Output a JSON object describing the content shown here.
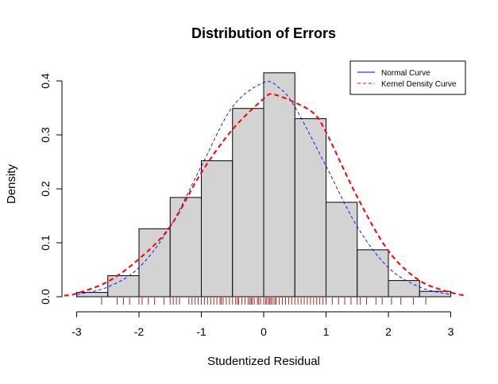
{
  "chart_data": {
    "type": "histogram",
    "title": "Distribution of Errors",
    "xlabel": "Studentized Residual",
    "ylabel": "Density",
    "xlim": [
      -3.2,
      3.25
    ],
    "ylim": [
      0,
      0.42
    ],
    "x_ticks": [
      -3,
      -2,
      -1,
      0,
      1,
      2,
      3
    ],
    "y_ticks": [
      0.0,
      0.1,
      0.2,
      0.3,
      0.4
    ],
    "y_tick_labels": [
      "0.0",
      "0.1",
      "0.2",
      "0.3",
      "0.4"
    ],
    "grid": false,
    "legend_position": "top-right",
    "histogram": {
      "bin_edges": [
        -3.0,
        -2.5,
        -2.0,
        -1.5,
        -1.0,
        -0.5,
        0.0,
        0.5,
        1.0,
        1.5,
        2.0,
        2.5,
        3.0
      ],
      "densities": [
        0.008,
        0.039,
        0.126,
        0.184,
        0.252,
        0.349,
        0.415,
        0.33,
        0.175,
        0.087,
        0.03,
        0.01
      ],
      "fill_color": "#d3d3d3",
      "edge_color": "#000000"
    },
    "series": [
      {
        "name": "Normal Curve",
        "style": "dashed",
        "color": "#0000ff",
        "x": [
          -3.0,
          -2.5,
          -2.0,
          -1.5,
          -1.0,
          -0.5,
          0.0,
          0.25,
          0.5,
          1.0,
          1.5,
          2.0,
          2.5,
          3.0
        ],
        "y": [
          0.004,
          0.018,
          0.054,
          0.13,
          0.242,
          0.352,
          0.397,
          0.387,
          0.352,
          0.242,
          0.13,
          0.054,
          0.018,
          0.004
        ]
      },
      {
        "name": "Kernel Density Curve",
        "style": "dashed",
        "color": "#ff0000",
        "x": [
          -3.2,
          -3.0,
          -2.5,
          -2.0,
          -1.5,
          -1.0,
          -0.5,
          0.0,
          0.15,
          0.5,
          0.8,
          1.0,
          1.5,
          2.0,
          2.5,
          3.0,
          3.25
        ],
        "y": [
          0.002,
          0.006,
          0.028,
          0.07,
          0.13,
          0.23,
          0.31,
          0.367,
          0.375,
          0.36,
          0.34,
          0.305,
          0.185,
          0.085,
          0.03,
          0.008,
          0.002
        ]
      }
    ],
    "rug": {
      "color": "#a52a2a",
      "x": [
        -2.6,
        -2.35,
        -2.25,
        -2.15,
        -2.0,
        -1.95,
        -1.85,
        -1.75,
        -1.6,
        -1.5,
        -1.45,
        -1.4,
        -1.35,
        -1.2,
        -1.15,
        -1.1,
        -1.05,
        -1.0,
        -0.95,
        -0.9,
        -0.85,
        -0.8,
        -0.75,
        -0.7,
        -0.68,
        -0.65,
        -0.6,
        -0.55,
        -0.5,
        -0.45,
        -0.42,
        -0.4,
        -0.35,
        -0.3,
        -0.25,
        -0.22,
        -0.2,
        -0.18,
        -0.15,
        -0.1,
        -0.08,
        -0.05,
        0.0,
        0.03,
        0.05,
        0.08,
        0.1,
        0.12,
        0.15,
        0.18,
        0.2,
        0.25,
        0.3,
        0.35,
        0.4,
        0.45,
        0.5,
        0.55,
        0.6,
        0.65,
        0.7,
        0.75,
        0.8,
        0.85,
        0.9,
        0.95,
        1.0,
        1.1,
        1.2,
        1.3,
        1.4,
        1.5,
        1.55,
        1.65,
        1.8,
        1.9,
        2.05,
        2.2,
        2.4,
        2.6
      ]
    }
  }
}
